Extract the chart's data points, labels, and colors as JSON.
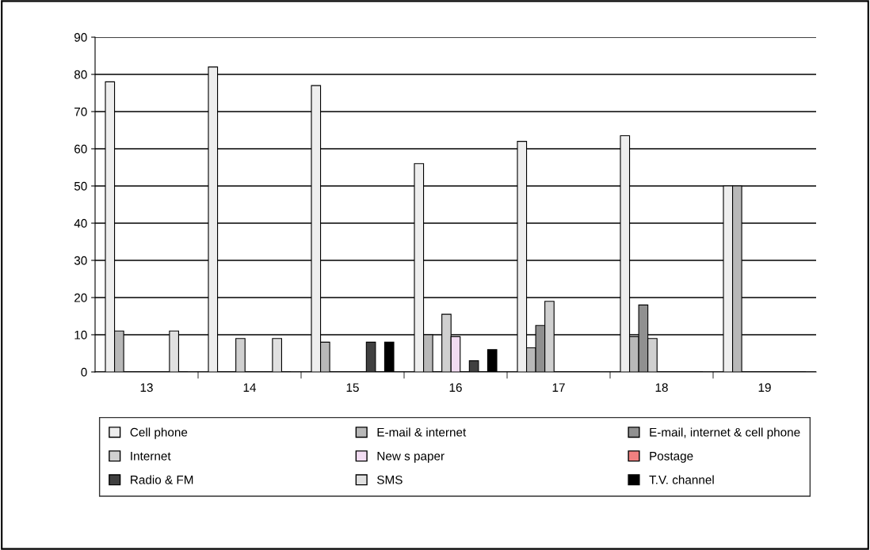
{
  "chart_data": {
    "type": "bar",
    "categories": [
      "13",
      "14",
      "15",
      "16",
      "17",
      "18",
      "19"
    ],
    "series": [
      {
        "name": "Cell phone",
        "color": "#eeeeee",
        "values": [
          78,
          82,
          77,
          56,
          62,
          63.5,
          50
        ]
      },
      {
        "name": "E-mail & internet",
        "color": "#b8b8b8",
        "values": [
          11,
          0,
          8,
          10,
          6.5,
          9.5,
          50
        ]
      },
      {
        "name": "E-mail, internet & cell phone",
        "color": "#909090",
        "values": [
          0,
          0,
          0,
          0,
          12.5,
          18,
          0
        ]
      },
      {
        "name": "Internet",
        "color": "#d0d0d0",
        "values": [
          0,
          9,
          0,
          15.5,
          19,
          9,
          0
        ]
      },
      {
        "name": "New s paper",
        "color": "#f2dcf2",
        "values": [
          0,
          0,
          0,
          9.5,
          0,
          0,
          0
        ]
      },
      {
        "name": "Postage",
        "color": "#f08080",
        "values": [
          0,
          0,
          0,
          0,
          0,
          0,
          0
        ]
      },
      {
        "name": "Radio & FM",
        "color": "#404040",
        "values": [
          0,
          0,
          8,
          3,
          0,
          0,
          0
        ]
      },
      {
        "name": "SMS",
        "color": "#e0e0e0",
        "values": [
          11,
          9,
          0,
          0,
          0,
          0,
          0
        ]
      },
      {
        "name": "T.V. channel",
        "color": "#000000",
        "values": [
          0,
          0,
          8,
          6,
          0,
          0,
          0
        ]
      }
    ],
    "ylim": [
      0,
      90
    ],
    "yticks": [
      0,
      10,
      20,
      30,
      40,
      50,
      60,
      70,
      80,
      90
    ],
    "grid": "y",
    "legend": "bottom"
  }
}
